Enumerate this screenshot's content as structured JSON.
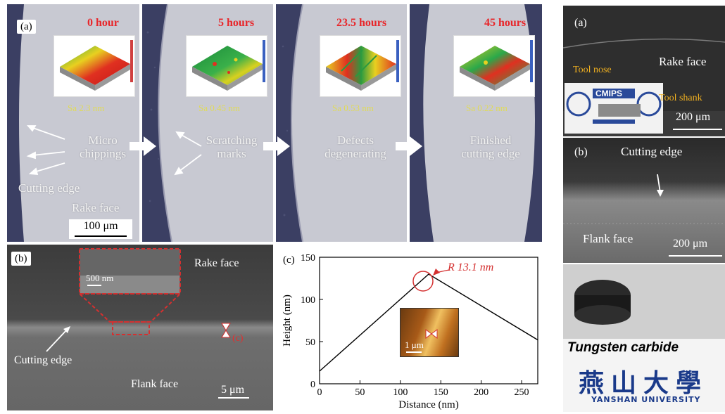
{
  "left_top": {
    "label": "(a)",
    "frames": [
      {
        "hours": "0 hour",
        "sa": "Sa 2.3 nm",
        "note": [
          "Micro",
          "chippings"
        ]
      },
      {
        "hours": "5 hours",
        "sa": "Sa 0.45 nm",
        "note": [
          "Scratching",
          "marks"
        ]
      },
      {
        "hours": "23.5 hours",
        "sa": "Sa 0.53 nm",
        "note": [
          "Defects",
          "degenerating"
        ]
      },
      {
        "hours": "45 hours",
        "sa": "Sa 0.22 nm",
        "note": [
          "Finished",
          "cutting edge"
        ]
      }
    ],
    "cutting_edge": "Cutting edge",
    "rake_face": "Rake face",
    "scalebar": "100 μm",
    "colors": {
      "header": "#e8262a",
      "sa": "#e8e032",
      "dark_band": "#3b3f63",
      "surface": "#c8c9d2"
    }
  },
  "left_bottom": {
    "label": "(b)",
    "rake_face": "Rake face",
    "flank_face": "Flank face",
    "cutting_edge": "Cutting edge",
    "inset_scale": "500 nm",
    "marker": "(c)",
    "scalebar": "5 μm"
  },
  "chart": {
    "label": "(c)",
    "annotation": "R 13.1 nm",
    "inset_scale": "1 μm"
  },
  "chart_data": {
    "type": "line",
    "title": "",
    "xlabel": "Distance (nm)",
    "ylabel": "Height (nm)",
    "xlim": [
      0,
      270
    ],
    "ylim": [
      0,
      150
    ],
    "xticks": [
      "0",
      "50",
      "100",
      "150",
      "200",
      "250"
    ],
    "yticks": [
      "0",
      "50",
      "100",
      "150"
    ],
    "x": [
      0,
      135,
      270
    ],
    "y": [
      15,
      130,
      52
    ],
    "grid": false
  },
  "right": {
    "panel_a": {
      "label": "(a)",
      "rake_face": "Rake face",
      "tool_nose": "Tool nose",
      "tool_shank": "Tool shank",
      "logo": "CMIPS",
      "scalebar": "200 μm"
    },
    "panel_b": {
      "label": "(b)",
      "cutting_edge": "Cutting edge",
      "flank_face": "Flank face",
      "scalebar": "200 μm"
    },
    "photo": {
      "material": "Tungsten carbide",
      "university_cn": "燕山大學",
      "university_en": "YANSHAN UNIVERSITY"
    }
  }
}
